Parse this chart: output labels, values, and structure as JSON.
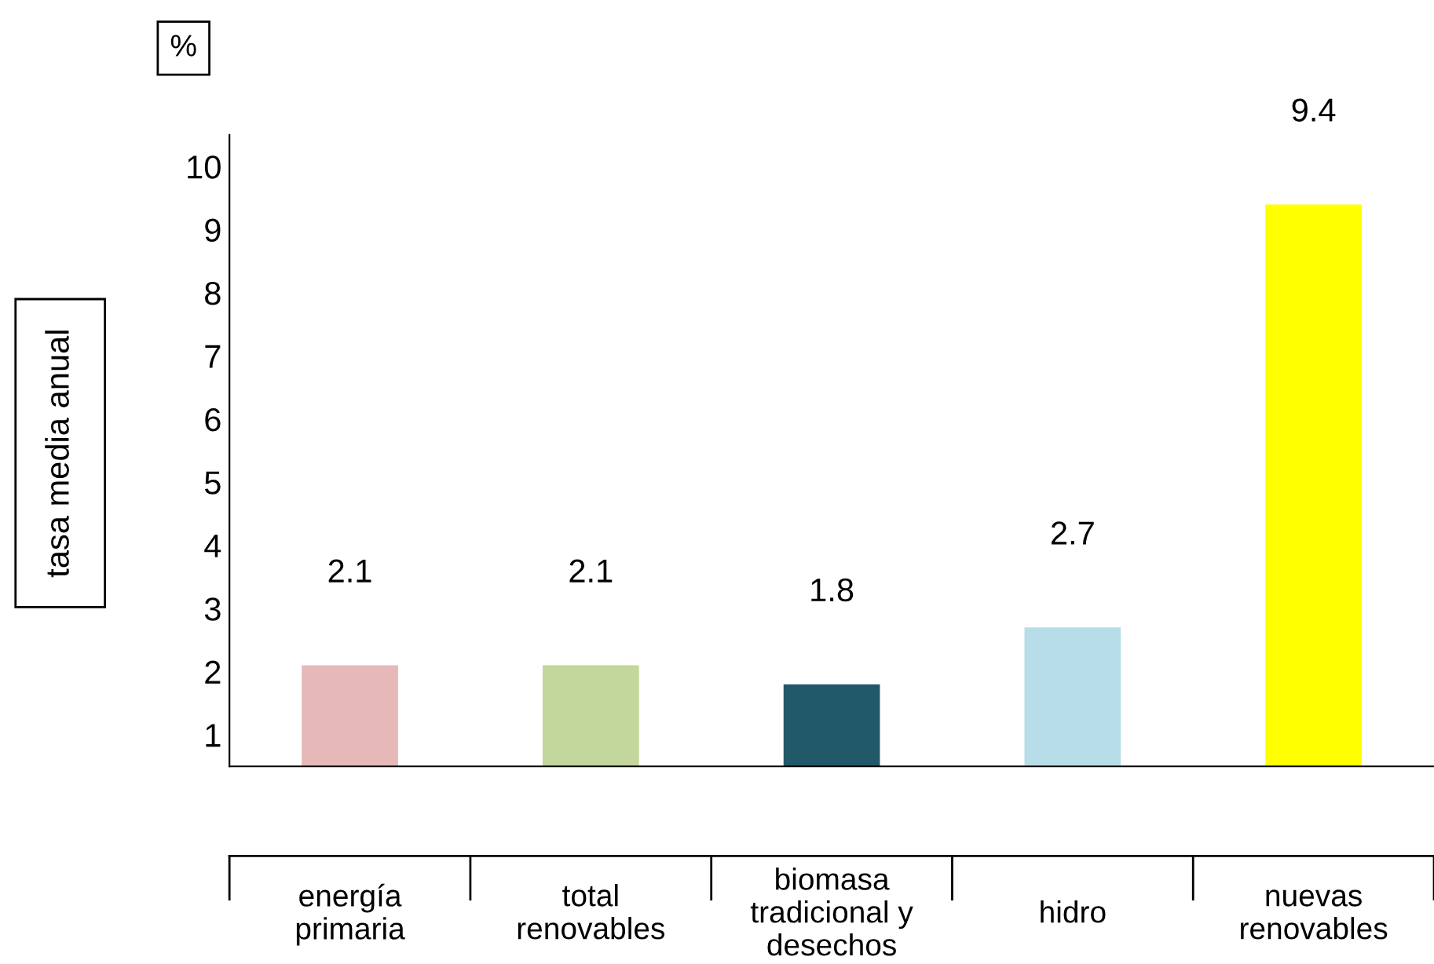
{
  "chart_data": {
    "type": "bar",
    "categories": [
      "energía\nprimaria",
      "total\nrenovables",
      "biomasa\ntradicional y\ndesechos",
      "hidro",
      "nuevas\nrenovables"
    ],
    "values": [
      2.1,
      2.1,
      1.8,
      2.7,
      9.4
    ],
    "colors": [
      "#e6b8b7",
      "#c3d69b",
      "#215968",
      "#b7dee8",
      "#ffff00"
    ],
    "ylabel": "tasa media anual",
    "annotations": [
      "%"
    ],
    "ylim": [
      0.5,
      10.5
    ],
    "yticks": [
      1,
      2,
      3,
      4,
      5,
      6,
      7,
      8,
      9,
      10
    ],
    "data_labels": true,
    "grid": false,
    "legend": false
  }
}
